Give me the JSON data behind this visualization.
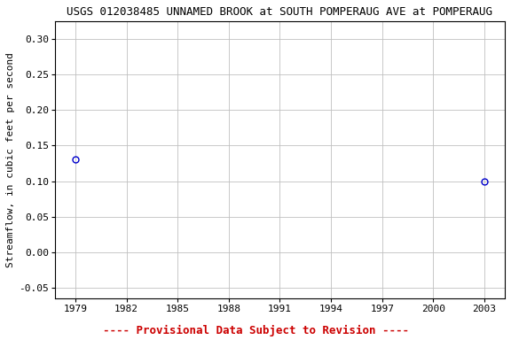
{
  "title": "USGS 012038485 UNNAMED BROOK at SOUTH POMPERAUG AVE at POMPERAUG",
  "ylabel": "Streamflow, in cubic feet per second",
  "x_data": [
    1979,
    2003
  ],
  "y_data": [
    0.13,
    0.1
  ],
  "xlim": [
    1977.8,
    2004.2
  ],
  "ylim": [
    -0.065,
    0.325
  ],
  "xticks": [
    1979,
    1982,
    1985,
    1988,
    1991,
    1994,
    1997,
    2000,
    2003
  ],
  "yticks": [
    -0.05,
    0.0,
    0.05,
    0.1,
    0.15,
    0.2,
    0.25,
    0.3
  ],
  "marker_color": "#0000cc",
  "marker_size": 5,
  "grid_color": "#c0c0c0",
  "bg_color": "#ffffff",
  "provisional_text": "---- Provisional Data Subject to Revision ----",
  "provisional_color": "#cc0000",
  "title_fontsize": 9,
  "axis_fontsize": 8,
  "tick_fontsize": 8,
  "provisional_fontsize": 9
}
